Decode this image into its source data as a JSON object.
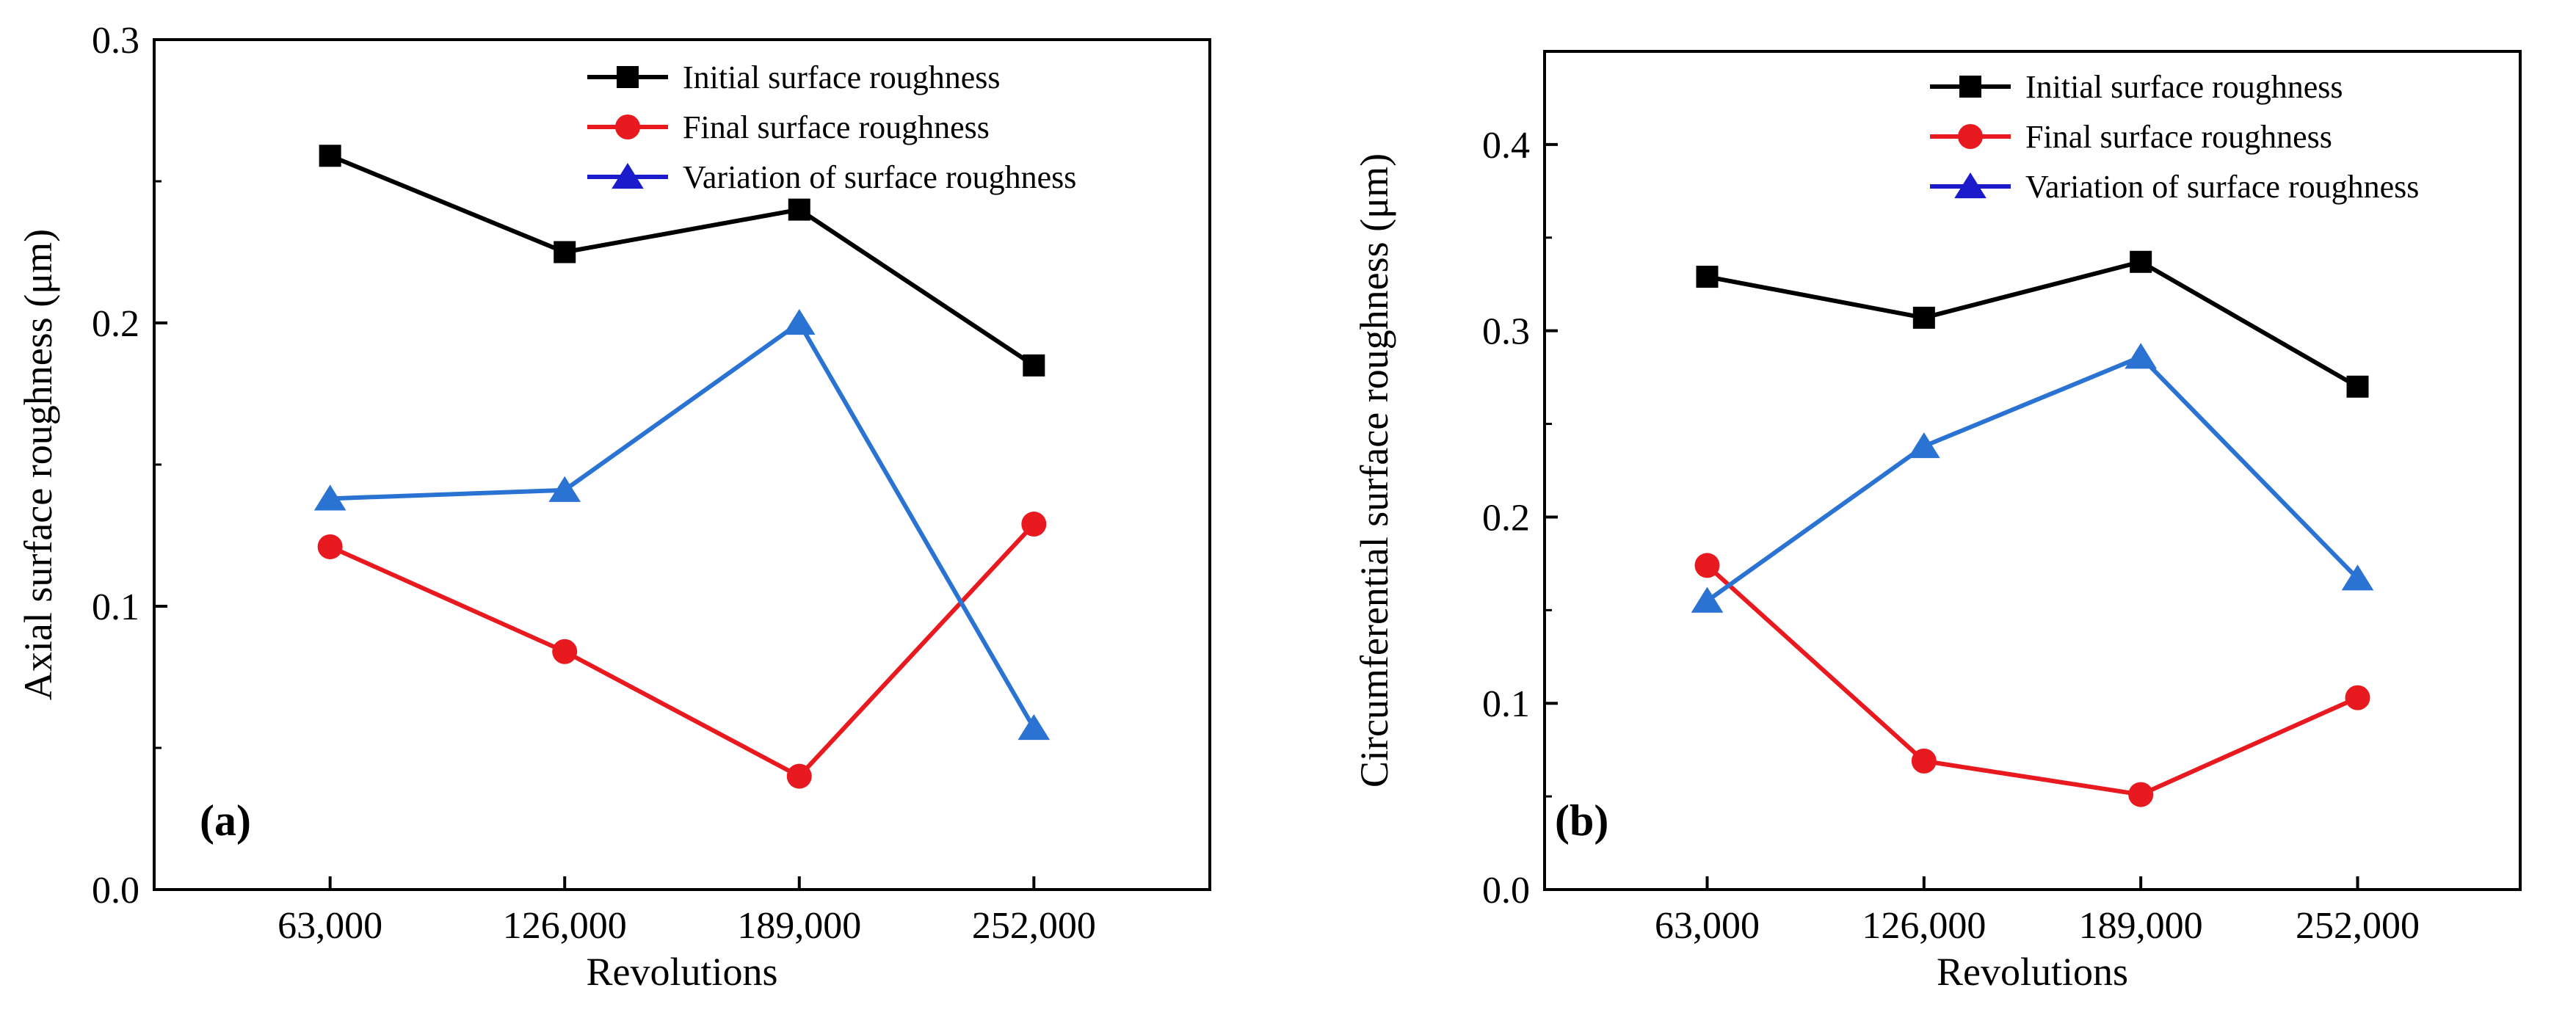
{
  "chart_data": [
    {
      "type": "line",
      "panel_label": "(a)",
      "xlabel": "Revolutions",
      "ylabel": "Axial surface roughness (μm)",
      "categories": [
        "63,000",
        "126,000",
        "189,000",
        "252,000"
      ],
      "ylim": [
        0,
        0.3
      ],
      "yticks": [
        "0.0",
        "0.1",
        "0.2",
        "0.3"
      ],
      "legend_position": "top-right",
      "grid": false,
      "series": [
        {
          "name": "Initial surface roughness",
          "color": "#000000",
          "marker": "square",
          "values": [
            0.259,
            0.225,
            0.24,
            0.185
          ]
        },
        {
          "name": "Final surface roughness",
          "color": "#e8191f",
          "marker": "circle",
          "values": [
            0.121,
            0.084,
            0.04,
            0.129
          ]
        },
        {
          "name": "Variation of surface roughness",
          "color": "#2b73d3",
          "marker_color": "#2b73d3",
          "legend_marker_color": "#1b1bcc",
          "marker": "triangle",
          "values": [
            0.138,
            0.141,
            0.2,
            0.057
          ]
        }
      ]
    },
    {
      "type": "line",
      "panel_label": "(b)",
      "xlabel": "Revolutions",
      "ylabel": "Circumferential surface roughness (μm)",
      "categories": [
        "63,000",
        "126,000",
        "189,000",
        "252,000"
      ],
      "ylim": [
        0,
        0.45
      ],
      "yticks": [
        "0.0",
        "0.1",
        "0.2",
        "0.3",
        "0.4"
      ],
      "legend_position": "top-right",
      "grid": false,
      "series": [
        {
          "name": "Initial surface roughness",
          "color": "#000000",
          "marker": "square",
          "values": [
            0.329,
            0.307,
            0.337,
            0.27
          ]
        },
        {
          "name": "Final surface roughness",
          "color": "#e8191f",
          "marker": "circle",
          "values": [
            0.174,
            0.069,
            0.051,
            0.103
          ]
        },
        {
          "name": "Variation of surface roughness",
          "color": "#2b73d3",
          "marker_color": "#2b73d3",
          "legend_marker_color": "#1b1bcc",
          "marker": "triangle",
          "values": [
            0.155,
            0.238,
            0.286,
            0.167
          ]
        }
      ]
    }
  ]
}
